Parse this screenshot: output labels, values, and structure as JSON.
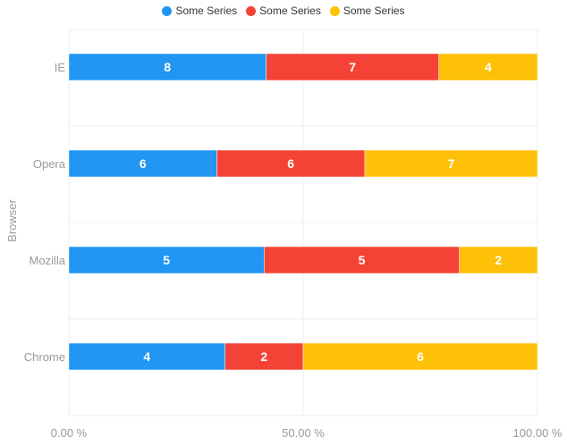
{
  "chart_data": {
    "type": "bar",
    "orientation": "horizontal",
    "stacking": "percent",
    "categories": [
      "IE",
      "Opera",
      "Mozilla",
      "Chrome"
    ],
    "series": [
      {
        "name": "Some Series",
        "color": "#2196f3",
        "values": [
          8,
          6,
          5,
          4
        ]
      },
      {
        "name": "Some Series",
        "color": "#f44336",
        "values": [
          7,
          6,
          5,
          2
        ]
      },
      {
        "name": "Some Series",
        "color": "#ffc107",
        "values": [
          4,
          7,
          2,
          6
        ]
      }
    ],
    "ylabel": "Browser",
    "x_ticks": [
      "0.00 %",
      "50.00 %",
      "100.00 %"
    ],
    "xlim": [
      0,
      100
    ],
    "legend_position": "top-center",
    "grid": true
  }
}
